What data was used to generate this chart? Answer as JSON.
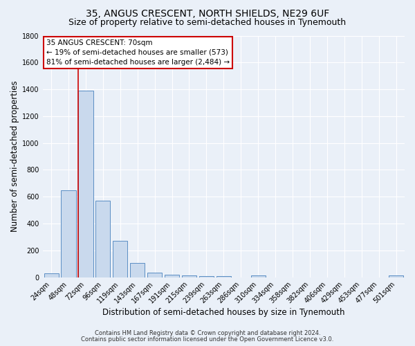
{
  "title": "35, ANGUS CRESCENT, NORTH SHIELDS, NE29 6UF",
  "subtitle": "Size of property relative to semi-detached houses in Tynemouth",
  "xlabel": "Distribution of semi-detached houses by size in Tynemouth",
  "ylabel": "Number of semi-detached properties",
  "bar_labels": [
    "24sqm",
    "48sqm",
    "72sqm",
    "96sqm",
    "119sqm",
    "143sqm",
    "167sqm",
    "191sqm",
    "215sqm",
    "239sqm",
    "263sqm",
    "286sqm",
    "310sqm",
    "334sqm",
    "358sqm",
    "382sqm",
    "406sqm",
    "429sqm",
    "453sqm",
    "477sqm",
    "501sqm"
  ],
  "bar_values": [
    30,
    650,
    1390,
    570,
    270,
    105,
    35,
    20,
    15,
    10,
    10,
    0,
    15,
    0,
    0,
    0,
    0,
    0,
    0,
    0,
    15
  ],
  "bar_color": "#c9d9ed",
  "bar_edge_color": "#5b8ec4",
  "red_line_index": 2,
  "annotation_title": "35 ANGUS CRESCENT: 70sqm",
  "annotation_line1": "← 19% of semi-detached houses are smaller (573)",
  "annotation_line2": "81% of semi-detached houses are larger (2,484) →",
  "annotation_box_color": "#ffffff",
  "annotation_box_edge": "#cc0000",
  "red_line_color": "#cc0000",
  "ylim": [
    0,
    1800
  ],
  "yticks": [
    0,
    200,
    400,
    600,
    800,
    1000,
    1200,
    1400,
    1600,
    1800
  ],
  "footer1": "Contains HM Land Registry data © Crown copyright and database right 2024.",
  "footer2": "Contains public sector information licensed under the Open Government Licence v3.0.",
  "bg_color": "#eaf0f8",
  "grid_color": "#ffffff",
  "title_fontsize": 10,
  "subtitle_fontsize": 9,
  "axis_label_fontsize": 8.5,
  "tick_fontsize": 7,
  "annotation_fontsize": 7.5,
  "footer_fontsize": 6
}
